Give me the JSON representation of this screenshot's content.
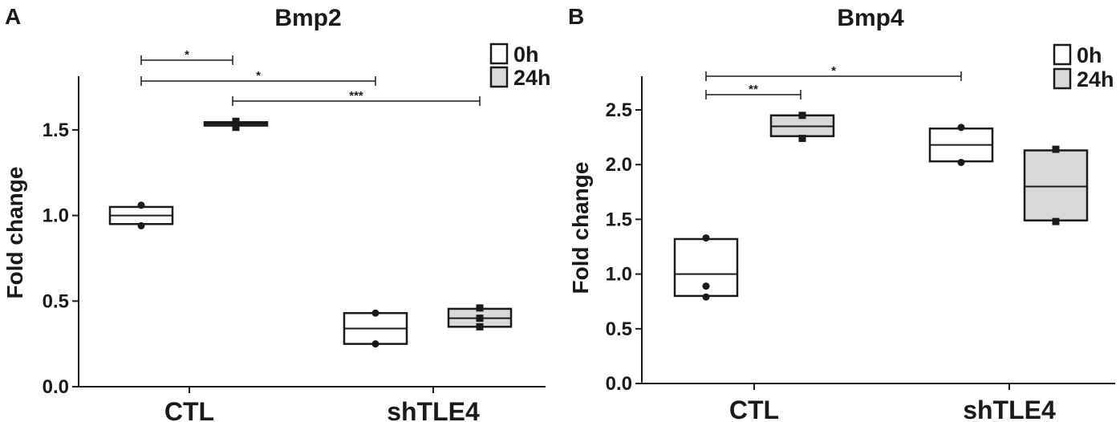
{
  "colors": {
    "box_0h": "#ffffff",
    "box_24h": "#d9d9d9",
    "stroke": "#1a1a1a"
  },
  "legend": {
    "items": [
      {
        "label": "0h",
        "fill": "#ffffff"
      },
      {
        "label": "24h",
        "fill": "#d9d9d9"
      }
    ]
  },
  "chart_data": [
    {
      "type": "box",
      "panel": "A",
      "title": "Bmp2",
      "ylabel": "Fold change",
      "xlabel": "",
      "ylim": [
        0,
        1.8
      ],
      "yticks": [
        "0.0",
        "0.5",
        "1.0",
        "1.5"
      ],
      "categories": [
        "CTL",
        "shTLE4"
      ],
      "series": [
        {
          "name": "0h",
          "boxes": [
            {
              "category": "CTL",
              "low": 0.95,
              "median": 1.0,
              "high": 1.05,
              "points": [
                1.06,
                0.94
              ]
            },
            {
              "category": "shTLE4",
              "low": 0.25,
              "median": 0.34,
              "high": 0.43,
              "points": [
                0.43,
                0.25
              ]
            }
          ]
        },
        {
          "name": "24h",
          "boxes": [
            {
              "category": "CTL",
              "low": 1.525,
              "median": 1.535,
              "high": 1.545,
              "points": [
                1.55,
                1.515
              ]
            },
            {
              "category": "shTLE4",
              "low": 0.35,
              "median": 0.4,
              "high": 0.455,
              "points": [
                0.46,
                0.4,
                0.35
              ]
            }
          ]
        }
      ],
      "significance": [
        {
          "from": "CTL 0h",
          "to": "CTL 24h",
          "label": "*"
        },
        {
          "from": "CTL 0h",
          "to": "shTLE4 0h",
          "label": "*"
        },
        {
          "from": "CTL 24h",
          "to": "shTLE4 24h",
          "label": "***"
        }
      ]
    },
    {
      "type": "box",
      "panel": "B",
      "title": "Bmp4",
      "ylabel": "Fold change",
      "xlabel": "",
      "ylim": [
        0,
        2.8
      ],
      "yticks": [
        "0.0",
        "0.5",
        "1.0",
        "1.5",
        "2.0",
        "2.5"
      ],
      "categories": [
        "CTL",
        "shTLE4"
      ],
      "series": [
        {
          "name": "0h",
          "boxes": [
            {
              "category": "CTL",
              "low": 0.8,
              "median": 1.0,
              "high": 1.32,
              "points": [
                1.33,
                0.89,
                0.79
              ]
            },
            {
              "category": "shTLE4",
              "low": 2.03,
              "median": 2.18,
              "high": 2.33,
              "points": [
                2.34,
                2.02
              ]
            }
          ]
        },
        {
          "name": "24h",
          "boxes": [
            {
              "category": "CTL",
              "low": 2.26,
              "median": 2.35,
              "high": 2.45,
              "points": [
                2.45,
                2.24
              ]
            },
            {
              "category": "shTLE4",
              "low": 1.49,
              "median": 1.8,
              "high": 2.13,
              "points": [
                2.14,
                1.48
              ]
            }
          ]
        }
      ],
      "significance": [
        {
          "from": "CTL 0h",
          "to": "CTL 24h",
          "label": "**"
        },
        {
          "from": "CTL 0h",
          "to": "shTLE4 0h",
          "label": "*"
        }
      ]
    }
  ]
}
